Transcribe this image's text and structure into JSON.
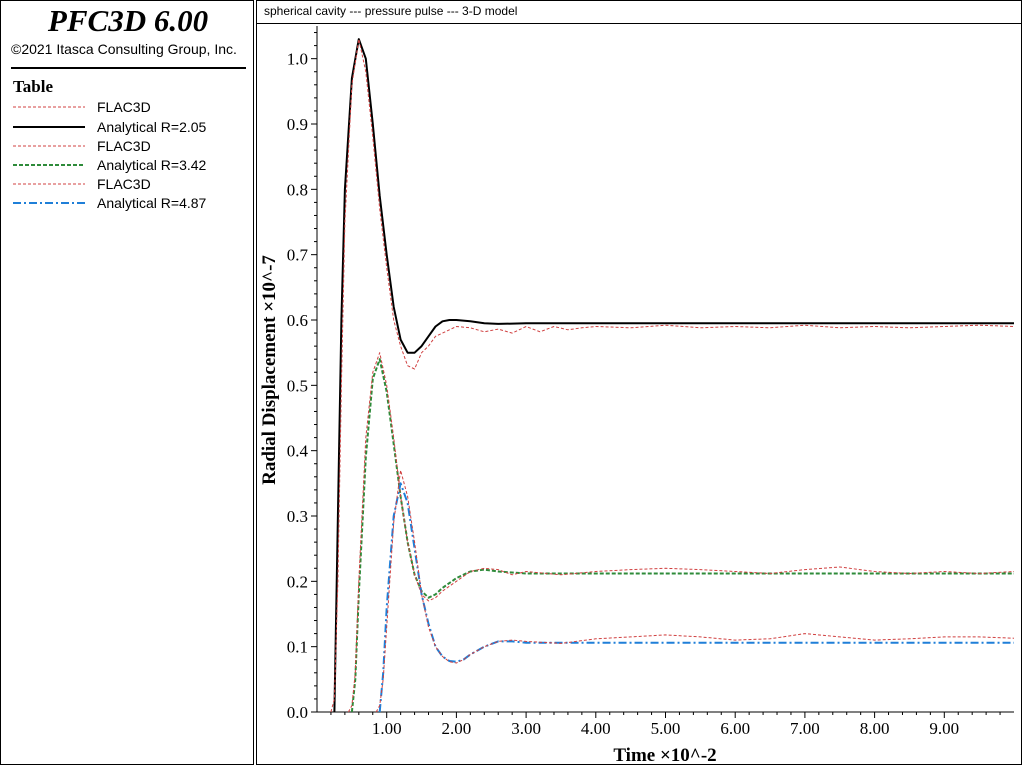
{
  "app": {
    "title": "PFC3D 6.00",
    "copyright": "©2021 Itasca Consulting Group, Inc."
  },
  "legend": {
    "title": "Table",
    "items": [
      {
        "label": "FLAC3D",
        "color": "#d04040",
        "style": "dashed"
      },
      {
        "label": "Analytical R=2.05",
        "color": "#000000",
        "style": "solid"
      },
      {
        "label": "FLAC3D",
        "color": "#d04040",
        "style": "dashed"
      },
      {
        "label": "Analytical R=3.42",
        "color": "#2e8b3a",
        "style": "dashed"
      },
      {
        "label": "FLAC3D",
        "color": "#d04040",
        "style": "dashed"
      },
      {
        "label": "Analytical R=4.87",
        "color": "#1f7fd8",
        "style": "dashdot"
      }
    ]
  },
  "chart_data": {
    "type": "line",
    "title": "spherical cavity --- pressure pulse --- 3-D model",
    "xlabel": "Time ×10^-2",
    "ylabel": "Radial Displacement ×10^-7",
    "xlim": [
      0,
      10
    ],
    "ylim": [
      0,
      1.05
    ],
    "xticks": [
      1,
      2,
      3,
      4,
      5,
      6,
      7,
      8,
      9
    ],
    "xtick_labels": [
      "1.00",
      "2.00",
      "3.00",
      "4.00",
      "5.00",
      "6.00",
      "7.00",
      "8.00",
      "9.00"
    ],
    "yticks": [
      0,
      0.1,
      0.2,
      0.3,
      0.4,
      0.5,
      0.6,
      0.7,
      0.8,
      0.9,
      1.0
    ],
    "ytick_labels": [
      "0.0",
      "0.1",
      "0.2",
      "0.3",
      "0.4",
      "0.5",
      "0.6",
      "0.7",
      "0.8",
      "0.9",
      "1.0"
    ],
    "series": [
      {
        "name": "Analytical R=2.05",
        "color": "#000000",
        "style": "solid",
        "x": [
          0.25,
          0.3,
          0.35,
          0.4,
          0.5,
          0.6,
          0.7,
          0.8,
          0.9,
          1.0,
          1.1,
          1.2,
          1.3,
          1.4,
          1.5,
          1.6,
          1.7,
          1.8,
          1.9,
          2.0,
          2.2,
          2.4,
          2.6,
          3.0,
          10.0
        ],
        "y": [
          0,
          0.3,
          0.6,
          0.8,
          0.97,
          1.03,
          1.0,
          0.9,
          0.79,
          0.7,
          0.62,
          0.57,
          0.55,
          0.55,
          0.56,
          0.575,
          0.59,
          0.598,
          0.6,
          0.6,
          0.598,
          0.595,
          0.594,
          0.595,
          0.595
        ]
      },
      {
        "name": "FLAC3D",
        "color": "#d04040",
        "style": "dashed",
        "x": [
          0.2,
          0.25,
          0.3,
          0.35,
          0.4,
          0.5,
          0.6,
          0.7,
          0.8,
          0.9,
          1.0,
          1.1,
          1.2,
          1.3,
          1.4,
          1.5,
          1.6,
          1.7,
          1.8,
          1.9,
          2.0,
          2.2,
          2.4,
          2.6,
          2.8,
          3.0,
          3.2,
          3.4,
          3.6,
          3.8,
          4.0,
          4.5,
          5.0,
          5.5,
          6.0,
          6.5,
          7.0,
          7.5,
          8.0,
          8.5,
          9.0,
          9.5,
          10.0
        ],
        "y": [
          0,
          0.02,
          0.2,
          0.5,
          0.75,
          0.96,
          1.03,
          0.98,
          0.88,
          0.77,
          0.68,
          0.6,
          0.56,
          0.53,
          0.525,
          0.55,
          0.56,
          0.575,
          0.58,
          0.585,
          0.59,
          0.588,
          0.582,
          0.586,
          0.58,
          0.59,
          0.582,
          0.59,
          0.585,
          0.588,
          0.59,
          0.588,
          0.592,
          0.588,
          0.59,
          0.588,
          0.592,
          0.588,
          0.59,
          0.588,
          0.59,
          0.592,
          0.59
        ]
      },
      {
        "name": "Analytical R=3.42",
        "color": "#2e8b3a",
        "style": "dashed",
        "x": [
          0.5,
          0.55,
          0.6,
          0.7,
          0.8,
          0.9,
          1.0,
          1.1,
          1.2,
          1.3,
          1.4,
          1.5,
          1.6,
          1.7,
          1.8,
          2.0,
          2.2,
          2.4,
          2.6,
          3.0,
          10.0
        ],
        "y": [
          0,
          0.05,
          0.18,
          0.39,
          0.51,
          0.54,
          0.49,
          0.41,
          0.33,
          0.26,
          0.21,
          0.185,
          0.175,
          0.18,
          0.19,
          0.205,
          0.215,
          0.218,
          0.215,
          0.212,
          0.212
        ]
      },
      {
        "name": "FLAC3D",
        "color": "#d04040",
        "style": "dashed",
        "x": [
          0.45,
          0.5,
          0.55,
          0.6,
          0.7,
          0.8,
          0.9,
          1.0,
          1.1,
          1.2,
          1.3,
          1.4,
          1.5,
          1.6,
          1.7,
          1.8,
          2.0,
          2.2,
          2.4,
          2.6,
          2.8,
          3.0,
          3.5,
          4.0,
          4.5,
          5.0,
          5.5,
          6.0,
          6.5,
          7.0,
          7.5,
          8.0,
          8.5,
          9.0,
          9.5,
          10.0
        ],
        "y": [
          0,
          0.01,
          0.06,
          0.2,
          0.42,
          0.52,
          0.55,
          0.5,
          0.42,
          0.33,
          0.26,
          0.21,
          0.18,
          0.17,
          0.175,
          0.185,
          0.2,
          0.215,
          0.22,
          0.218,
          0.21,
          0.215,
          0.21,
          0.215,
          0.218,
          0.22,
          0.218,
          0.215,
          0.212,
          0.218,
          0.222,
          0.215,
          0.212,
          0.215,
          0.212,
          0.215
        ]
      },
      {
        "name": "Analytical R=4.87",
        "color": "#1f7fd8",
        "style": "dashdot",
        "x": [
          0.9,
          0.95,
          1.0,
          1.1,
          1.2,
          1.3,
          1.4,
          1.5,
          1.6,
          1.7,
          1.8,
          1.9,
          2.0,
          2.1,
          2.2,
          2.4,
          2.6,
          2.8,
          3.0,
          10.0
        ],
        "y": [
          0,
          0.06,
          0.16,
          0.3,
          0.35,
          0.32,
          0.25,
          0.18,
          0.135,
          0.1,
          0.085,
          0.078,
          0.077,
          0.08,
          0.088,
          0.1,
          0.108,
          0.108,
          0.106,
          0.106
        ]
      },
      {
        "name": "FLAC3D",
        "color": "#d04040",
        "style": "dashed",
        "x": [
          0.85,
          0.9,
          0.95,
          1.0,
          1.1,
          1.2,
          1.3,
          1.4,
          1.5,
          1.6,
          1.7,
          1.8,
          1.9,
          2.0,
          2.1,
          2.2,
          2.4,
          2.6,
          2.8,
          3.0,
          3.5,
          4.0,
          4.5,
          5.0,
          5.5,
          6.0,
          6.5,
          7.0,
          7.5,
          8.0,
          8.5,
          9.0,
          9.5,
          10.0
        ],
        "y": [
          0,
          0.01,
          0.05,
          0.13,
          0.29,
          0.37,
          0.33,
          0.26,
          0.18,
          0.13,
          0.1,
          0.085,
          0.077,
          0.075,
          0.08,
          0.088,
          0.1,
          0.108,
          0.11,
          0.108,
          0.105,
          0.112,
          0.115,
          0.118,
          0.115,
          0.11,
          0.112,
          0.12,
          0.115,
          0.11,
          0.112,
          0.115,
          0.115,
          0.113
        ]
      }
    ]
  }
}
